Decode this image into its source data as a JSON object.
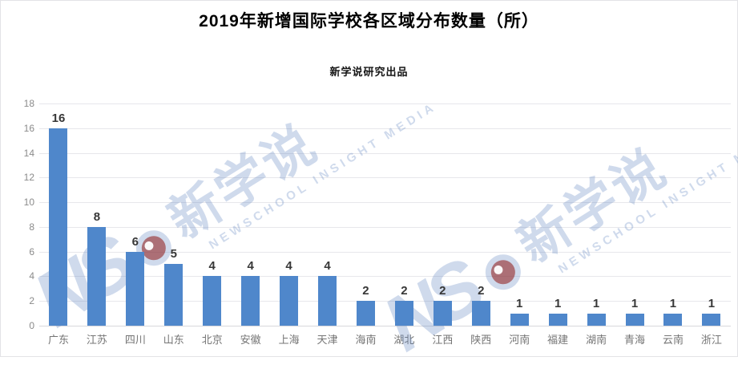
{
  "page": {
    "title": "2019年新增国际学校各区域分布数量（所）",
    "subtitle": "新学说研究出品"
  },
  "watermark": {
    "logo_text": "NS",
    "eye_icon": "red-dot-eye-icon",
    "cn_text": "新学说",
    "en_text": "NEWSCHOOL INSIGHT MEDIA",
    "color": "#5f85c1"
  },
  "chart_data": {
    "type": "bar",
    "title": "2019年新增国际学校各区域分布数量（所）",
    "subtitle": "新学说研究出品",
    "categories": [
      "广东",
      "江苏",
      "四川",
      "山东",
      "北京",
      "安徽",
      "上海",
      "天津",
      "海南",
      "湖北",
      "江西",
      "陕西",
      "河南",
      "福建",
      "湖南",
      "青海",
      "云南",
      "浙江"
    ],
    "values": [
      16,
      8,
      6,
      5,
      4,
      4,
      4,
      4,
      2,
      2,
      2,
      2,
      1,
      1,
      1,
      1,
      1,
      1
    ],
    "xlabel": "",
    "ylabel": "",
    "ylim": [
      0,
      18
    ],
    "ytick_step": 2,
    "ytick_labels": [
      "0",
      "2",
      "4",
      "6",
      "8",
      "10",
      "12",
      "14",
      "16",
      "18"
    ],
    "grid": true,
    "legend": false,
    "data_labels": true,
    "bar_color": "#4f87cb",
    "value_label_color": "#373737",
    "axis_tick_color": "#8a8a8a",
    "category_label_color": "#757575",
    "gridline_color": "#e7e7eb"
  }
}
